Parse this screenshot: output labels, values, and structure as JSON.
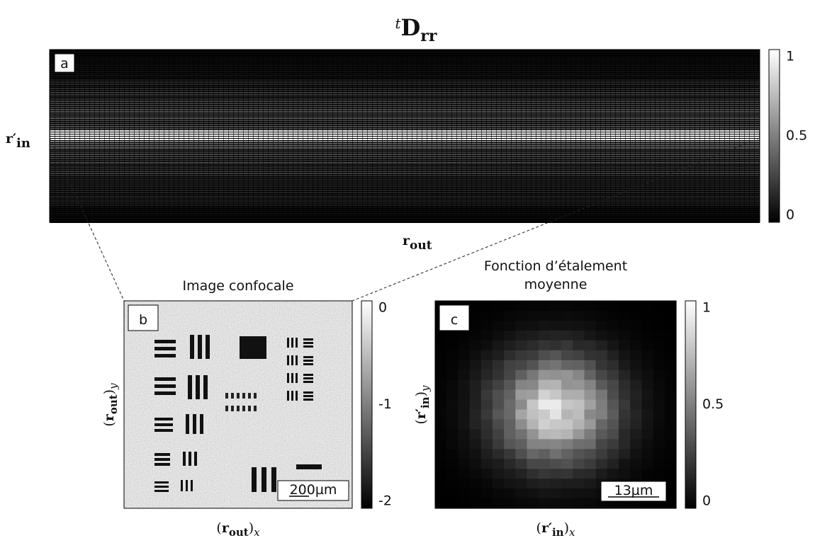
{
  "title": {
    "prefix": "t",
    "main": "D",
    "subscript": "rr"
  },
  "panel_a": {
    "label": "a",
    "y_label": {
      "main": "r′",
      "subscript": "in"
    },
    "x_label": {
      "main": "r",
      "subscript": "out"
    },
    "colorbar_ticks": [
      "1",
      "0.5",
      "0"
    ]
  },
  "panel_b": {
    "label": "b",
    "title": "Image confocale",
    "scale_bar": "200µm",
    "x_label": {
      "open": "(",
      "main": "r",
      "subscript": "out",
      "close": ")",
      "axis": "x"
    },
    "y_label": {
      "open": "(",
      "main": "r",
      "subscript": "out",
      "close": ")",
      "axis": "y"
    },
    "colorbar_ticks": [
      "0",
      "-1",
      "-2"
    ]
  },
  "panel_c": {
    "label": "c",
    "title": [
      "Fonction d’étalement",
      "moyenne"
    ],
    "scale_bar": "13µm",
    "x_label": {
      "open": "(",
      "main": "r′",
      "subscript": "in",
      "close": ")",
      "axis": "x"
    },
    "y_label": {
      "open": "(",
      "main": "r′",
      "subscript": "in",
      "close": ")",
      "axis": "y"
    },
    "colorbar_ticks": [
      "1",
      "0.5",
      "0"
    ]
  }
}
